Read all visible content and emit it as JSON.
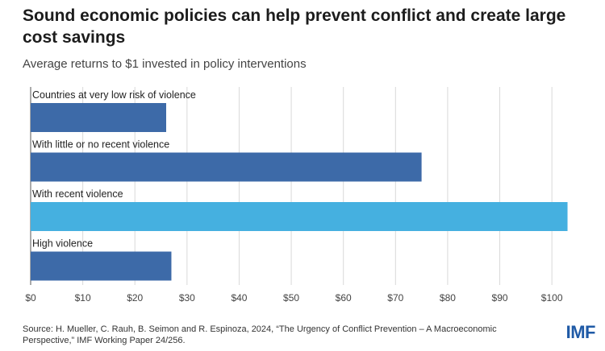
{
  "header": {
    "title": "Sound economic policies can help prevent conflict and create large cost savings",
    "subtitle": "Average returns to $1 invested in policy interventions"
  },
  "footer": {
    "source": "Source: H. Mueller, C. Rauh, B. Seimon and R. Espinoza, 2024, “The Urgency of Conflict Prevention – A Macroeconomic Perspective,” IMF Working Paper 24/256.",
    "logo": "IMF"
  },
  "colors": {
    "bar_default": "#3d6aa8",
    "bar_highlight": "#45b0e0",
    "grid": "#d9d9d9",
    "axis": "#555555"
  },
  "chart_data": {
    "type": "bar",
    "orientation": "horizontal",
    "title": "Sound economic policies can help prevent conflict and create large cost savings",
    "subtitle": "Average returns to $1 invested in policy interventions",
    "categories": [
      "Countries at very low risk of violence",
      "With little or no recent violence",
      "With recent violence",
      "High violence"
    ],
    "values": [
      26,
      75,
      103,
      27
    ],
    "highlight": [
      false,
      false,
      true,
      false
    ],
    "xlim": [
      0,
      104
    ],
    "xticks": [
      0,
      10,
      20,
      30,
      40,
      50,
      60,
      70,
      80,
      90,
      100
    ],
    "xtick_labels": [
      "$0",
      "$10",
      "$20",
      "$30",
      "$40",
      "$50",
      "$60",
      "$70",
      "$80",
      "$90",
      "$100"
    ],
    "grid": "vertical",
    "legend": "none"
  }
}
